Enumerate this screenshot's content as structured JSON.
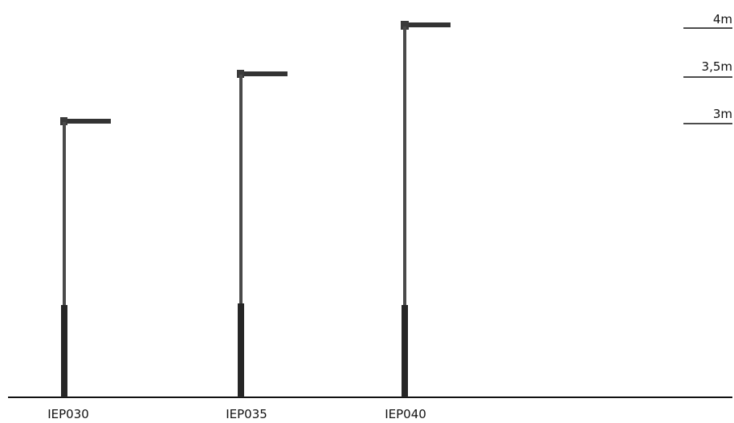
{
  "height_marks": [
    {
      "label": "4m",
      "value": 4
    },
    {
      "label": "3,5m",
      "value": 3.5
    },
    {
      "label": "3m",
      "value": 3
    }
  ],
  "poles": [
    {
      "model": "IEP030",
      "height": 3
    },
    {
      "model": "IEP035",
      "height": 3.5
    },
    {
      "model": "IEP040",
      "height": 4
    }
  ],
  "colors": {
    "pole_upper": "#4a4a4a",
    "pole_base": "#262626",
    "luminaire": "#333333",
    "line": "#111111"
  }
}
